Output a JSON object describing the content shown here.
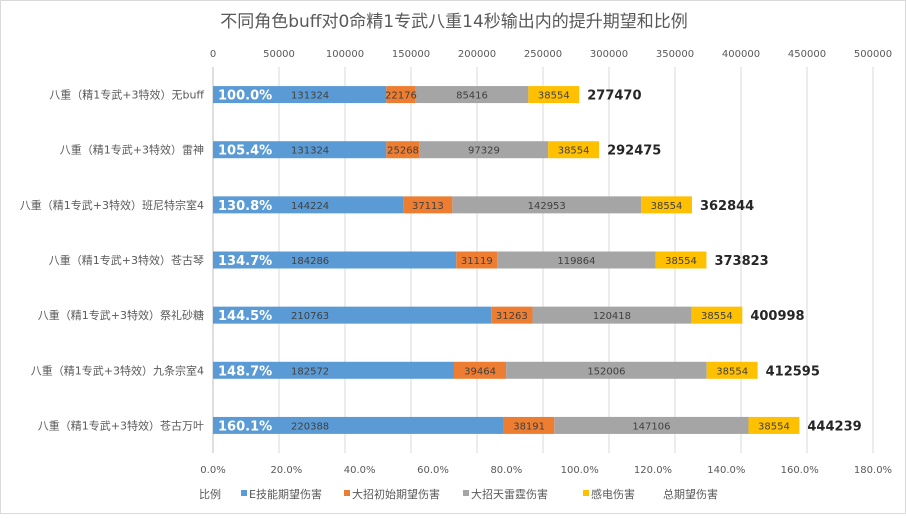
{
  "chart_data": {
    "type": "bar",
    "orientation": "horizontal",
    "stacked": true,
    "title": "不同角色buff对0命精1专武八重14秒输出内的提升期望和比例",
    "categories": [
      "八重（精1专武+3特效）无buff",
      "八重（精1专武+3特效）雷神",
      "八重（精1专武+3特效）班尼特宗室4",
      "八重（精1专武+3特效）苍古琴",
      "八重（精1专武+3特效）祭礼砂糖",
      "八重（精1专武+3特效）九条宗室4",
      "八重（精1专武+3特效）苍古万叶"
    ],
    "series": [
      {
        "name": "E技能期望伤害",
        "color": "#5b9bd5",
        "values": [
          131324,
          131324,
          144224,
          184286,
          210763,
          182572,
          220388
        ]
      },
      {
        "name": "大招初始期望伤害",
        "color": "#ed7d31",
        "values": [
          22176,
          25268,
          37113,
          31119,
          31263,
          39464,
          38191
        ]
      },
      {
        "name": "大招天雷霆伤害",
        "color": "#a5a5a5",
        "values": [
          85416,
          97329,
          142953,
          119864,
          120418,
          152006,
          147106
        ]
      },
      {
        "name": "感电伤害",
        "color": "#ffc000",
        "values": [
          38554,
          38554,
          38554,
          38554,
          38554,
          38554,
          38554
        ]
      },
      {
        "name": "总期望伤害",
        "color": "none",
        "values": [
          277470,
          292475,
          362844,
          373823,
          400998,
          412595,
          444239
        ]
      }
    ],
    "ratio": {
      "name": "比例",
      "values": [
        "100.0%",
        "105.4%",
        "130.8%",
        "134.7%",
        "144.5%",
        "148.7%",
        "160.1%"
      ]
    },
    "x_axis_top": {
      "range": [
        0,
        500000
      ],
      "ticks": [
        "0",
        "50000",
        "100000",
        "150000",
        "200000",
        "250000",
        "300000",
        "350000",
        "400000",
        "450000",
        "500000"
      ]
    },
    "x_axis_bottom": {
      "range": [
        0,
        1.8
      ],
      "ticks": [
        "0.0%",
        "20.0%",
        "40.0%",
        "60.0%",
        "80.0%",
        "100.0%",
        "120.0%",
        "140.0%",
        "160.0%",
        "180.0%"
      ]
    },
    "grid": true,
    "legend_position": "bottom",
    "legend": [
      "比例",
      "E技能期望伤害",
      "大招初始期望伤害",
      "大招天雷霆伤害",
      "感电伤害",
      "总期望伤害"
    ]
  }
}
